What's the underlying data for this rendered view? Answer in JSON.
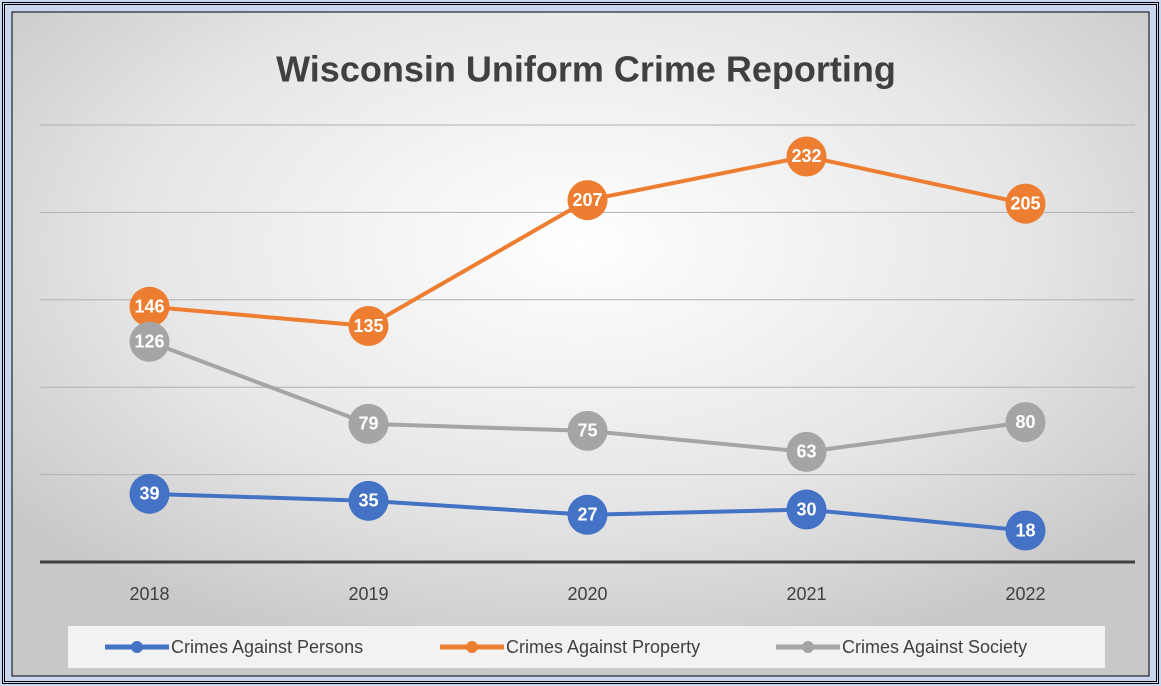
{
  "chart_data": {
    "type": "line",
    "title": "Wisconsin Uniform Crime Reporting",
    "categories": [
      "2018",
      "2019",
      "2020",
      "2021",
      "2022"
    ],
    "series": [
      {
        "name": "Crimes Against Persons",
        "color": "#4472c4",
        "values": [
          39,
          35,
          27,
          30,
          18
        ]
      },
      {
        "name": "Crimes Against Property",
        "color": "#ed7d31",
        "values": [
          146,
          135,
          207,
          232,
          205
        ]
      },
      {
        "name": "Crimes Against Society",
        "color": "#a5a5a5",
        "values": [
          126,
          79,
          75,
          63,
          80
        ]
      }
    ],
    "ylim": [
      0,
      250
    ],
    "yticks": [
      0,
      50,
      100,
      150,
      200,
      250
    ],
    "grid": true,
    "legend": "bottom"
  }
}
